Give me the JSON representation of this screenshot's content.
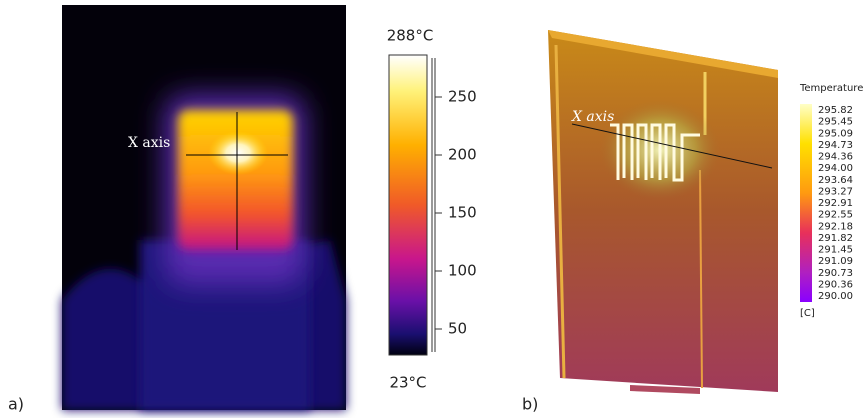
{
  "panel_a": {
    "label": "a)",
    "x_axis_label": "X axis",
    "colorbar": {
      "max_label": "288°C",
      "min_label": "23°C",
      "ticks": [
        "250",
        "200",
        "150",
        "100",
        "50"
      ]
    }
  },
  "panel_b": {
    "label": "b)",
    "x_axis_label": "X axis",
    "legend": {
      "title": "Temperature",
      "values": [
        "295.82",
        "295.45",
        "295.09",
        "294.73",
        "294.36",
        "294.00",
        "293.64",
        "293.27",
        "292.91",
        "292.55",
        "292.18",
        "291.82",
        "291.45",
        "291.09",
        "290.73",
        "290.36",
        "290.00"
      ],
      "unit": "[C]"
    }
  }
}
